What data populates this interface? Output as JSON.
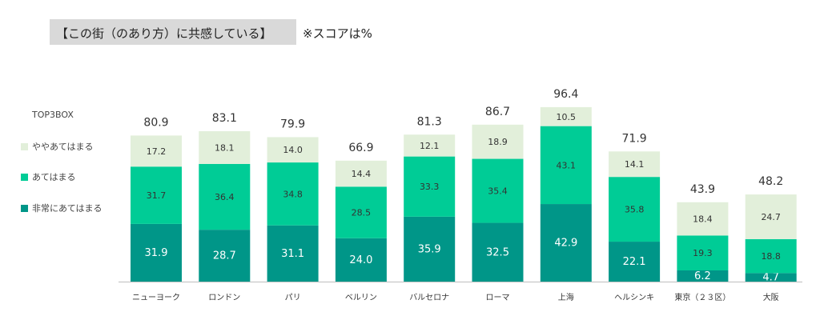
{
  "header": {
    "title": "【この街（のあり方）に共感している】",
    "note": "※スコアは%"
  },
  "legend": {
    "heading": "TOP3BOX",
    "items": [
      {
        "label": "ややあてはまる",
        "color": "#e2efda"
      },
      {
        "label": "あてはまる",
        "color": "#00cc96"
      },
      {
        "label": "非常にあてはまる",
        "color": "#009688"
      }
    ]
  },
  "chart_data": {
    "type": "bar",
    "stacked": true,
    "title": "【この街（のあり方）に共感している】",
    "note": "※スコアは%",
    "categories": [
      "ニューヨーク",
      "ロンドン",
      "パリ",
      "ベルリン",
      "バルセロナ",
      "ローマ",
      "上海",
      "ヘルシンキ",
      "東京（２３区）",
      "大阪"
    ],
    "series": [
      {
        "name": "非常にあてはまる",
        "color": "#009688",
        "values": [
          31.9,
          28.7,
          31.1,
          24.0,
          35.9,
          32.5,
          42.9,
          22.1,
          6.2,
          4.7
        ]
      },
      {
        "name": "あてはまる",
        "color": "#00cc96",
        "values": [
          31.7,
          36.4,
          34.8,
          28.5,
          33.3,
          35.4,
          43.1,
          35.8,
          19.3,
          18.8
        ]
      },
      {
        "name": "ややあてはまる",
        "color": "#e2efda",
        "values": [
          17.2,
          18.1,
          14.0,
          14.4,
          12.1,
          18.9,
          10.5,
          14.1,
          18.4,
          24.7
        ]
      }
    ],
    "totals": [
      "80.9",
      "83.1",
      "79.9",
      "66.9",
      "81.3",
      "86.7",
      "96.4",
      "71.9",
      "43.9",
      "48.2"
    ],
    "legend_title": "TOP3BOX",
    "ylim": [
      0,
      100
    ],
    "grid": false
  }
}
